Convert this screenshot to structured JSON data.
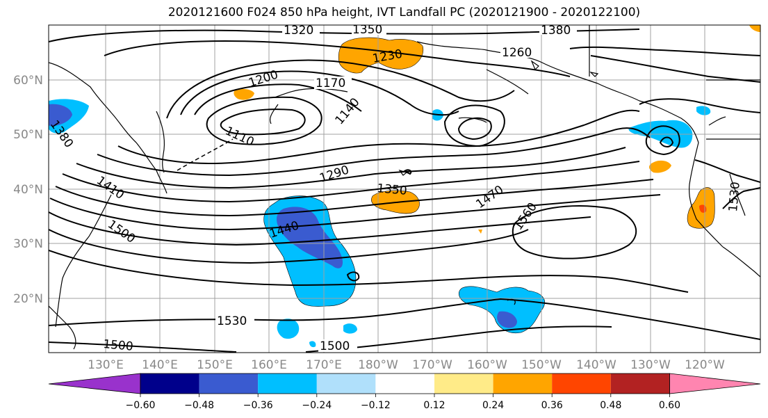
{
  "title": "2020121600 F024 850 hPa height, IVT Landfall PC (2020121900 - 2020122100)",
  "map": {
    "lon_labels": [
      "130°E",
      "140°E",
      "150°E",
      "160°E",
      "170°E",
      "180°W",
      "170°W",
      "160°W",
      "150°W",
      "140°W",
      "130°W",
      "120°W"
    ],
    "lat_labels": [
      "60°N",
      "50°N",
      "40°N",
      "30°N",
      "20°N"
    ],
    "contour_labels": [
      "1320",
      "1350",
      "1380",
      "1260",
      "1230",
      "1200",
      "1170",
      "1140",
      "1110",
      "1380",
      "1410",
      "1290",
      "1350",
      "1470",
      "1560",
      "1440",
      "1500",
      "1530",
      "1500",
      "1500",
      "1530"
    ],
    "colors": {
      "grid": "#a0a0a0",
      "contour": "#000000",
      "purple": "#9932cc",
      "navy": "#00008b",
      "royal_blue": "#3a5bd0",
      "deep_sky_blue": "#00bfff",
      "light_blue": "#b0e0fb",
      "white": "#ffffff",
      "khaki": "#ffeb88",
      "orange": "#ffa500",
      "orange_red": "#ff4500",
      "firebrick": "#b22222",
      "pink": "#ff85b0"
    }
  },
  "colorbar": {
    "ticks": [
      "−0.60",
      "−0.48",
      "−0.36",
      "−0.24",
      "−0.12",
      "0.12",
      "0.24",
      "0.36",
      "0.48",
      "0.60"
    ],
    "bins": [
      "#00008b",
      "#3a5bd0",
      "#00bfff",
      "#b0e0fb",
      "#ffffff",
      "#ffffff",
      "#ffeb88",
      "#ffa500",
      "#ff4500",
      "#b22222"
    ],
    "under_color": "#9932cc",
    "over_color": "#ff85b0"
  }
}
